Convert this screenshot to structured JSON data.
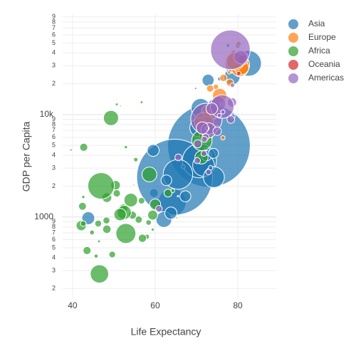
{
  "chart_data": {
    "type": "scatter",
    "x_label": "Life Expectancy",
    "y_label": "GDP per Capita",
    "xlim": [
      37.6,
      89.3
    ],
    "xticks": [
      40,
      60,
      80
    ],
    "ylim": [
      158,
      95500
    ],
    "log_y": true,
    "grid": true,
    "legend_position": "right",
    "yticks": [
      {
        "value": 200,
        "label": "2"
      },
      {
        "value": 300,
        "label": "3"
      },
      {
        "value": 400,
        "label": "4"
      },
      {
        "value": 500,
        "label": "5"
      },
      {
        "value": 600,
        "label": "6"
      },
      {
        "value": 700,
        "label": "7"
      },
      {
        "value": 800,
        "label": "8"
      },
      {
        "value": 900,
        "label": "9"
      },
      1000,
      {
        "value": 2000,
        "label": "2"
      },
      {
        "value": 3000,
        "label": "3"
      },
      {
        "value": 4000,
        "label": "4"
      },
      {
        "value": 5000,
        "label": "5"
      },
      {
        "value": 6000,
        "label": "6"
      },
      {
        "value": 7000,
        "label": "7"
      },
      {
        "value": 8000,
        "label": "8"
      },
      {
        "value": 9000,
        "label": "9"
      },
      {
        "value": 10000,
        "label": "10k"
      },
      {
        "value": 20000,
        "label": "2"
      },
      {
        "value": 30000,
        "label": "3"
      },
      {
        "value": 40000,
        "label": "4"
      },
      {
        "value": 50000,
        "label": "5"
      },
      {
        "value": 60000,
        "label": "6"
      },
      {
        "value": 70000,
        "label": "7"
      },
      {
        "value": 80000,
        "label": "8"
      },
      {
        "value": 90000,
        "label": "9"
      }
    ],
    "series": [
      {
        "name": "Asia",
        "color": "#1f77b4",
        "x": [
          43.8,
          75.6,
          64.1,
          59.7,
          73.0,
          82.2,
          64.7,
          70.7,
          71.0,
          59.5,
          80.7,
          82.6,
          72.5,
          67.3,
          78.6,
          77.6,
          72.0,
          74.2,
          66.8,
          62.1,
          63.8,
          75.6,
          65.5,
          71.7,
          72.8,
          80.0,
          72.4,
          74.1,
          78.4,
          70.6,
          74.2,
          73.4,
          62.7
        ],
        "values": [
          974,
          29796,
          1391,
          1714,
          4959,
          39725,
          2452,
          3541,
          11606,
          4471,
          25523,
          31656,
          4519,
          1593,
          23348,
          47307,
          10461,
          12452,
          3096,
          944,
          1091,
          22316,
          2606,
          3190,
          21655,
          47143,
          3970,
          4185,
          28718,
          7458,
          2442,
          3025,
          2281
        ],
        "sizes": [
          31.9,
          0.7,
          150,
          14.1,
          1318,
          6.98,
          1110,
          224,
          69.5,
          27.5,
          6.4,
          127,
          6.05,
          23.3,
          49,
          2.5,
          3.9,
          24.8,
          2.9,
          47.8,
          28.9,
          3.2,
          169,
          91,
          27.6,
          4.55,
          20.4,
          19.3,
          23.2,
          65,
          85,
          4.0,
          22.2
        ]
      },
      {
        "name": "Europe",
        "color": "#ff7f0e",
        "x": [
          76.4,
          79.8,
          79.4,
          74.9,
          73.0,
          75.7,
          76.5,
          78.3,
          79.3,
          80.7,
          79.4,
          79.5,
          73.3,
          81.8,
          78.9,
          80.5,
          74.5,
          79.8,
          80.2,
          75.6,
          78.1,
          72.5,
          74.0,
          74.7,
          77.9,
          80.9,
          80.9,
          81.7,
          71.8,
          79.4
        ],
        "values": [
          5937,
          36126,
          33693,
          7446,
          10681,
          14619,
          22833,
          35278,
          33207,
          30470,
          32170,
          27538,
          18009,
          36181,
          40676,
          28570,
          9254,
          36798,
          49357,
          15390,
          20510,
          10808,
          9787,
          18678,
          25768,
          28821,
          33860,
          37506,
          8458,
          33203
        ],
        "sizes": [
          3.6,
          8.2,
          10.4,
          4.6,
          7.3,
          4.5,
          10.2,
          5.5,
          5.2,
          61,
          82,
          10.7,
          10,
          0.3,
          4.1,
          58,
          0.68,
          16.6,
          4.6,
          38.5,
          10.6,
          22.3,
          10.2,
          5.4,
          2.0,
          40.4,
          9.0,
          7.6,
          71,
          60.8
        ]
      },
      {
        "name": "Africa",
        "color": "#2ca02c",
        "x": [
          72.3,
          42.7,
          56.7,
          50.7,
          52.3,
          49.6,
          50.4,
          44.7,
          50.7,
          65.2,
          46.5,
          55.3,
          48.3,
          54.8,
          71.3,
          51.6,
          58.0,
          52.9,
          56.7,
          59.4,
          60.0,
          56.0,
          46.4,
          54.1,
          42.6,
          45.7,
          74.0,
          59.4,
          48.3,
          54.5,
          64.2,
          72.8,
          71.2,
          42.1,
          52.9,
          56.9,
          46.9,
          46.2,
          65.5,
          63.1,
          42.6,
          48.2,
          49.3,
          58.6,
          39.6,
          52.5,
          58.4,
          73.9,
          51.5,
          42.4,
          43.5
        ],
        "values": [
          6223,
          4797,
          1441,
          12570,
          1217,
          430,
          2042,
          706,
          1704,
          986,
          278,
          3633,
          1545,
          2082,
          5581,
          12154,
          641,
          691,
          13206,
          753,
          1328,
          943,
          579,
          1463,
          1569,
          415,
          12057,
          1044,
          759,
          1042,
          1803,
          10957,
          3820,
          824,
          4811,
          620,
          2014,
          863,
          1598,
          1712,
          863,
          926,
          9270,
          2602,
          4513,
          1107,
          883,
          7093,
          1056,
          1271,
          470
        ],
        "sizes": [
          33.3,
          12.4,
          8.1,
          1.6,
          14.3,
          8.4,
          17.7,
          4.4,
          10.2,
          0.7,
          64.6,
          3.8,
          18,
          0.5,
          80,
          0.55,
          4.9,
          76.5,
          1.45,
          1.7,
          22.9,
          9.9,
          1.47,
          35.6,
          2.0,
          3.2,
          6.0,
          19.2,
          13.3,
          12,
          3.3,
          1.25,
          33.8,
          20,
          2.05,
          12.9,
          135,
          8.9,
          0.2,
          12.3,
          6.1,
          9.1,
          44,
          42.3,
          1.1,
          38.1,
          5.7,
          10.3,
          29.2,
          11.7,
          12.3
        ]
      },
      {
        "name": "Oceania",
        "color": "#d62728",
        "x": [
          81.2,
          80.2
        ],
        "values": [
          34435,
          25185
        ],
        "sizes": [
          20.4,
          4.1
        ]
      },
      {
        "name": "Americas",
        "color": "#9467bd",
        "x": [
          75.3,
          65.6,
          72.4,
          80.7,
          78.6,
          72.9,
          78.8,
          78.3,
          72.2,
          75.0,
          71.9,
          70.3,
          60.9,
          70.2,
          72.6,
          76.2,
          72.9,
          75.5,
          71.8,
          71.4,
          78.7,
          69.8,
          78.2,
          76.4,
          73.7
        ],
        "values": [
          12779,
          3822,
          9066,
          36319,
          13172,
          7007,
          9645,
          8948,
          6025,
          6873,
          5728,
          5186,
          1202,
          3548,
          7321,
          11978,
          2749,
          9809,
          4173,
          7409,
          19329,
          18008,
          42952,
          10611,
          11416
        ],
        "sizes": [
          40.3,
          9.1,
          190,
          33.4,
          16.3,
          44.2,
          4.1,
          11.4,
          9.3,
          13.8,
          6.9,
          12.6,
          8.5,
          7.5,
          2.8,
          108,
          5.7,
          3.2,
          6.7,
          28.7,
          3.9,
          1.06,
          301,
          3.4,
          26.1
        ]
      }
    ]
  }
}
